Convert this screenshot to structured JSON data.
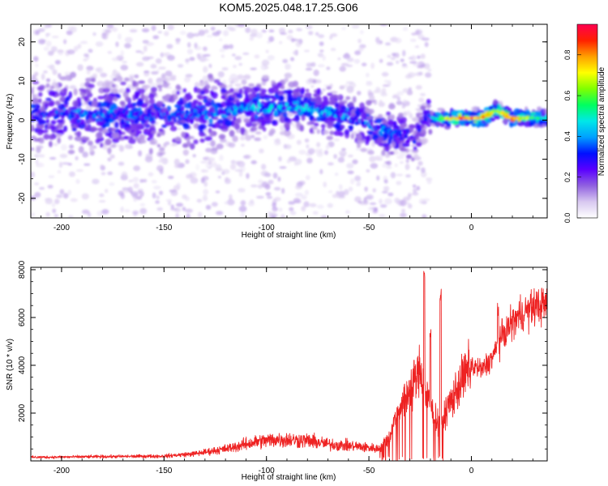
{
  "title": "KOM5.2025.048.17.25.G06",
  "chart_data": [
    {
      "type": "heatmap",
      "title": "",
      "xlabel": "Height of straight line (km)",
      "ylabel": "Frequency (Hz)",
      "xlim": [
        -215,
        37
      ],
      "ylim": [
        -25,
        24.5
      ],
      "xticks": [
        -200,
        -150,
        -100,
        -50,
        0
      ],
      "yticks": [
        -20,
        -10,
        0,
        10,
        20
      ],
      "grid": false,
      "colorbar": {
        "label": "Normalized spectral amplitude",
        "range": [
          0,
          0.95
        ],
        "ticks": [
          "0.0",
          "0.2",
          "0.4",
          "0.6",
          "0.8"
        ],
        "colormap": [
          "#ffffff",
          "#d8c8f0",
          "#9060e0",
          "#5a00ff",
          "#0010ff",
          "#00a0ff",
          "#00e8e8",
          "#00ff60",
          "#80ff00",
          "#ffff00",
          "#ffa000",
          "#ff2000",
          "#ff0050"
        ]
      },
      "ridge": {
        "x": [
          -215,
          -180,
          -150,
          -120,
          -105,
          -90,
          -75,
          -60,
          -45,
          -35,
          -28,
          -22,
          -15,
          -5,
          5,
          12,
          20,
          30,
          37
        ],
        "y": [
          1.5,
          1.5,
          1.2,
          2.0,
          3.5,
          3.5,
          2.5,
          1.0,
          -2.5,
          -3.5,
          -5.5,
          1.0,
          0.3,
          0.5,
          0.5,
          2.5,
          0.5,
          0.6,
          0.5
        ],
        "peak_amplitude": [
          0.35,
          0.38,
          0.35,
          0.4,
          0.45,
          0.45,
          0.42,
          0.4,
          0.38,
          0.35,
          0.3,
          0.3,
          0.65,
          0.9,
          0.85,
          0.7,
          0.9,
          0.6,
          0.55
        ]
      }
    },
    {
      "type": "line",
      "title": "",
      "xlabel": "Height of straight line (km)",
      "ylabel": "SNR (10 * v/v)",
      "xlim": [
        -215,
        37
      ],
      "ylim": [
        0,
        8100
      ],
      "xticks": [
        -200,
        -150,
        -100,
        -50,
        0
      ],
      "yticks": [
        2000,
        4000,
        6000,
        8000
      ],
      "grid": false,
      "color": "#ee2222",
      "envelope": {
        "x": [
          -215,
          -150,
          -135,
          -120,
          -105,
          -95,
          -80,
          -70,
          -55,
          -45,
          -40,
          -35,
          -30,
          -25,
          -20,
          -15,
          -10,
          -5,
          0,
          5,
          10,
          15,
          20,
          25,
          30,
          37
        ],
        "y": [
          150,
          200,
          300,
          500,
          800,
          900,
          850,
          700,
          600,
          500,
          1000,
          2300,
          3000,
          3800,
          2200,
          1500,
          2500,
          3300,
          4000,
          3800,
          4300,
          5200,
          5800,
          6200,
          6400,
          6600
        ]
      },
      "spikes": [
        {
          "x": -23,
          "y": 8100
        },
        {
          "x": -15,
          "y": 7300
        },
        {
          "x": -20,
          "y": 5600
        },
        {
          "x": 13,
          "y": 6600
        }
      ]
    }
  ]
}
